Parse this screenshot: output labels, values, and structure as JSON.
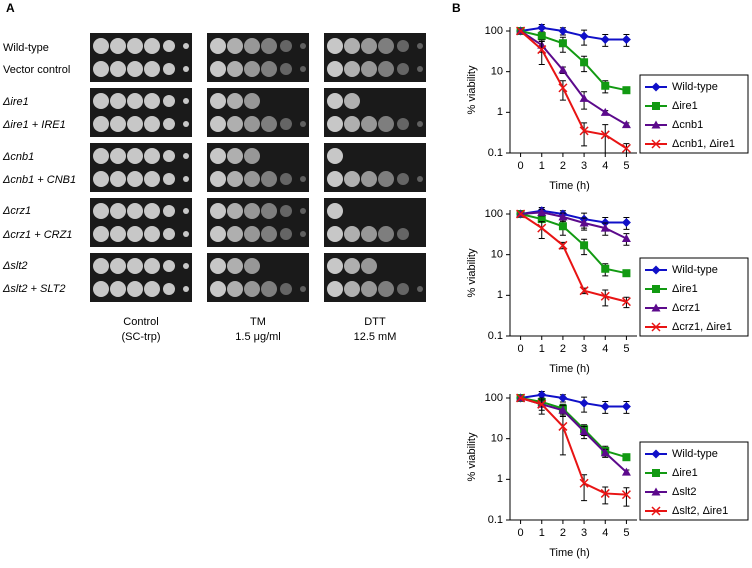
{
  "panel_a": {
    "label": "A",
    "strains": [
      "Wild-type",
      "Vector control",
      "Δire1",
      "Δire1 + IRE1",
      "Δcnb1",
      "Δcnb1 + CNB1",
      "Δcrz1",
      "Δcrz1 + CRZ1",
      "Δslt2",
      "Δslt2 + SLT2"
    ],
    "conditions": [
      [
        "Control",
        "(SC-trp)"
      ],
      [
        "TM",
        "1.5 μg/ml"
      ],
      [
        "DTT",
        "12.5 mM"
      ]
    ]
  },
  "panel_b": {
    "label": "B"
  },
  "chart_data": [
    {
      "type": "line",
      "yscale": "log",
      "xlabel": "Time (h)",
      "ylabel": "% viability",
      "x": [
        0,
        1,
        2,
        3,
        4,
        5
      ],
      "xlim": [
        -0.5,
        5.5
      ],
      "xticks": [
        0,
        1,
        2,
        3,
        4,
        5
      ],
      "ylim": [
        0.1,
        100
      ],
      "yticks": [
        0.1,
        1,
        10,
        100
      ],
      "legend": "right",
      "series": [
        {
          "name": "Wild-type",
          "color": "#1010c8",
          "marker": "diamond",
          "values": [
            100,
            120,
            100,
            75,
            62,
            62
          ],
          "errors": [
            0,
            25,
            20,
            30,
            20,
            20
          ]
        },
        {
          "name": "Δire1",
          "color": "#129a12",
          "marker": "square",
          "values": [
            100,
            75,
            50,
            17,
            4.5,
            3.5
          ],
          "errors": [
            0,
            10,
            20,
            7,
            1.5,
            0.5
          ]
        },
        {
          "name": "Δcnb1",
          "color": "#5c0a8c",
          "marker": "triangle",
          "values": [
            100,
            45,
            11,
            2.2,
            1.0,
            0.5
          ],
          "errors": [
            0,
            15,
            2,
            1,
            0.1,
            0.05
          ]
        },
        {
          "name": "Δcnb1, Δire1",
          "color": "#e81414",
          "marker": "x",
          "values": [
            100,
            35,
            4,
            0.35,
            0.28,
            0.13
          ],
          "errors": [
            0,
            20,
            2,
            0.2,
            0.22,
            0.04
          ]
        }
      ]
    },
    {
      "type": "line",
      "yscale": "log",
      "xlabel": "Time (h)",
      "ylabel": "% viability",
      "x": [
        0,
        1,
        2,
        3,
        4,
        5
      ],
      "xlim": [
        -0.5,
        5.5
      ],
      "xticks": [
        0,
        1,
        2,
        3,
        4,
        5
      ],
      "ylim": [
        0.1,
        100
      ],
      "yticks": [
        0.1,
        1,
        10,
        100
      ],
      "legend": "right",
      "series": [
        {
          "name": "Wild-type",
          "color": "#1010c8",
          "marker": "diamond",
          "values": [
            100,
            120,
            100,
            75,
            62,
            62
          ],
          "errors": [
            0,
            25,
            20,
            30,
            20,
            20
          ]
        },
        {
          "name": "Δire1",
          "color": "#129a12",
          "marker": "square",
          "values": [
            100,
            75,
            50,
            17,
            4.5,
            3.5
          ],
          "errors": [
            0,
            10,
            20,
            7,
            1.5,
            0.5
          ]
        },
        {
          "name": "Δcrz1",
          "color": "#5c0a8c",
          "marker": "triangle",
          "values": [
            100,
            110,
            85,
            60,
            45,
            25
          ],
          "errors": [
            0,
            20,
            20,
            20,
            15,
            8
          ]
        },
        {
          "name": "Δcrz1, Δire1",
          "color": "#e81414",
          "marker": "x",
          "values": [
            100,
            45,
            17,
            1.3,
            0.95,
            0.7
          ],
          "errors": [
            0,
            20,
            3,
            0.2,
            0.4,
            0.2
          ]
        }
      ]
    },
    {
      "type": "line",
      "yscale": "log",
      "xlabel": "Time (h)",
      "ylabel": "% viability",
      "x": [
        0,
        1,
        2,
        3,
        4,
        5
      ],
      "xlim": [
        -0.5,
        5.5
      ],
      "xticks": [
        0,
        1,
        2,
        3,
        4,
        5
      ],
      "ylim": [
        0.1,
        100
      ],
      "yticks": [
        0.1,
        1,
        10,
        100
      ],
      "legend": "right",
      "series": [
        {
          "name": "Wild-type",
          "color": "#1010c8",
          "marker": "diamond",
          "values": [
            100,
            120,
            100,
            75,
            62,
            62
          ],
          "errors": [
            0,
            25,
            20,
            30,
            20,
            20
          ]
        },
        {
          "name": "Δire1",
          "color": "#129a12",
          "marker": "square",
          "values": [
            100,
            80,
            55,
            17,
            5,
            3.5
          ],
          "errors": [
            0,
            15,
            15,
            5,
            1.5,
            0.5
          ]
        },
        {
          "name": "Δslt2",
          "color": "#5c0a8c",
          "marker": "triangle",
          "values": [
            100,
            70,
            50,
            15,
            4.5,
            1.5
          ],
          "errors": [
            0,
            20,
            15,
            5,
            1,
            0.2
          ]
        },
        {
          "name": "Δslt2, Δire1",
          "color": "#e81414",
          "marker": "x",
          "values": [
            100,
            70,
            20,
            0.8,
            0.45,
            0.42
          ],
          "errors": [
            0,
            30,
            16,
            0.5,
            0.2,
            0.2
          ]
        }
      ]
    }
  ]
}
